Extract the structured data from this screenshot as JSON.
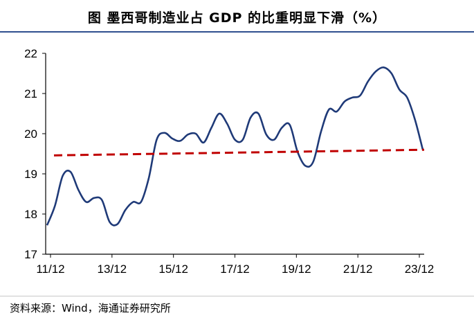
{
  "header": {
    "title": "图  墨西哥制造业占 GDP 的比重明显下滑（%）"
  },
  "footer": {
    "source": "资料来源：Wind，海通证券研究所"
  },
  "colors": {
    "line": "#1f3a78",
    "trend": "#c00000",
    "axis": "#000000",
    "rule": "#2f4f8f"
  },
  "chart_data": {
    "type": "line",
    "title": "墨西哥制造业占 GDP 的比重明显下滑（%）",
    "xlabel": "",
    "ylabel": "",
    "ylim": [
      17,
      22
    ],
    "yticks": [
      17,
      18,
      19,
      20,
      21,
      22
    ],
    "xticks": [
      "11/12",
      "13/12",
      "15/12",
      "17/12",
      "19/12",
      "21/12",
      "23/12"
    ],
    "grid": false,
    "series": [
      {
        "style": "solid",
        "values": [
          17.72,
          18.2,
          18.95,
          19.05,
          18.6,
          18.3,
          18.4,
          18.35,
          17.8,
          17.75,
          18.1,
          18.3,
          18.3,
          18.9,
          19.85,
          20.02,
          19.88,
          19.82,
          19.98,
          20.0,
          19.78,
          20.15,
          20.5,
          20.25,
          19.85,
          19.85,
          20.4,
          20.5,
          19.98,
          19.85,
          20.15,
          20.22,
          19.55,
          19.2,
          19.3,
          20.05,
          20.6,
          20.55,
          20.8,
          20.9,
          20.95,
          21.3,
          21.55,
          21.65,
          21.5,
          21.1,
          20.9,
          20.35,
          19.6
        ]
      },
      {
        "style": "dashed",
        "values": [
          19.46,
          19.6
        ]
      }
    ]
  }
}
